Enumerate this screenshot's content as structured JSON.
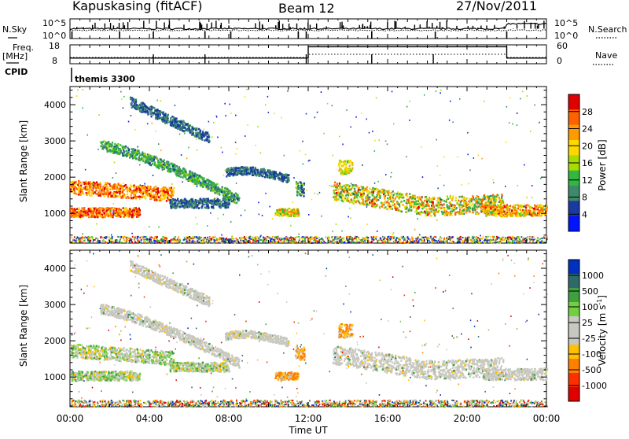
{
  "header": {
    "station": "Kapuskasing (fitACF)",
    "beam": "Beam 12",
    "date": "27/Nov/2011"
  },
  "side_labels": {
    "nsky": "N.Sky",
    "freq_line1": "Freq.",
    "freq_line2": "[MHz]",
    "cpid": "CPID",
    "nsearch": "N.Search",
    "nave": "Nave"
  },
  "cpid_value": "themis 3300",
  "chart_data": [
    {
      "type": "line",
      "series": [
        {
          "name": "N.Sky"
        },
        {
          "name": "N.Search"
        }
      ],
      "x": [
        "00:00",
        "04:00",
        "08:00",
        "12:00",
        "16:00",
        "20:00",
        "00:00"
      ],
      "yticks_left": [
        "10^5",
        "10^0"
      ],
      "yticks_right": [
        "10^5",
        "10^0"
      ]
    },
    {
      "type": "line",
      "series": [
        {
          "name": "Freq.",
          "x_hours": [
            0,
            12,
            22,
            24
          ],
          "values": [
            11,
            17,
            11,
            11
          ]
        },
        {
          "name": "Nave",
          "x_hours": [
            0,
            12,
            22,
            24
          ],
          "values": [
            20,
            30,
            20,
            20
          ]
        }
      ],
      "yticks_left": [
        "18",
        "8"
      ],
      "yticks_right": [
        "60",
        "0"
      ]
    },
    {
      "type": "heatmap",
      "quantity": "Power",
      "ylabel": "Slant Range [km]",
      "yticks": [
        "4000",
        "3000",
        "2000",
        "1000"
      ],
      "ylim": [
        180,
        4500
      ],
      "xlim_hours": [
        0,
        24
      ],
      "colorbar_label": "Power [dB]",
      "colorbar_ticks": [
        "28",
        "24",
        "20",
        "16",
        "12",
        "8",
        "4"
      ],
      "colorbar_colors": [
        "#e00000",
        "#ff6000",
        "#ff9a00",
        "#ffd800",
        "#a8dc00",
        "#30b840",
        "#3c8a6a",
        "#1a3aa0",
        "#0014ff"
      ]
    },
    {
      "type": "heatmap",
      "quantity": "Velocity",
      "ylabel": "Slant Range [km]",
      "yticks": [
        "4000",
        "3000",
        "2000",
        "1000"
      ],
      "ylim": [
        180,
        4500
      ],
      "xlim_hours": [
        0,
        24
      ],
      "xticks": [
        "00:00",
        "04:00",
        "08:00",
        "12:00",
        "16:00",
        "20:00",
        "00:00"
      ],
      "xlabel": "Time UT",
      "colorbar_label": "Velocity [m s",
      "colorbar_label_exp": "-1",
      "colorbar_label_end": "]",
      "colorbar_ticks": [
        "1000",
        "500",
        "100",
        "25",
        "-25",
        "-100",
        "-500",
        "-1000"
      ],
      "colorbar_colors": [
        "#0030c0",
        "#2e6a6a",
        "#40a040",
        "#70d040",
        "#c8c8c0",
        "#c8c8c0",
        "#ffc000",
        "#ff8000",
        "#ff3000",
        "#e00000"
      ]
    }
  ]
}
